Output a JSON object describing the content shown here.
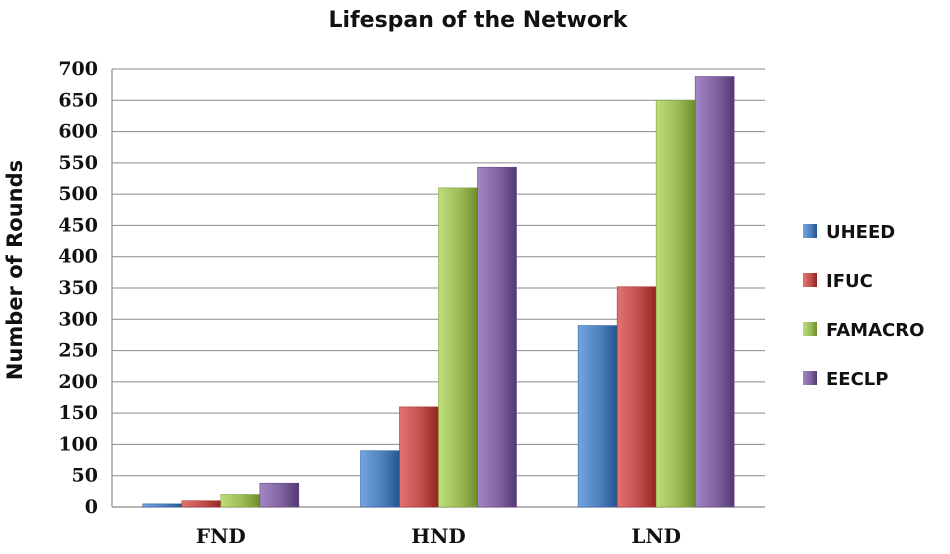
{
  "chart_data": {
    "type": "bar",
    "title": "Lifespan of the Network",
    "xlabel": "",
    "ylabel": "Number of Rounds",
    "categories": [
      "FND",
      "HND",
      "LND"
    ],
    "ylim": [
      0,
      700
    ],
    "yticks": [
      0,
      50,
      100,
      150,
      200,
      250,
      300,
      350,
      400,
      450,
      500,
      550,
      600,
      650,
      700
    ],
    "grid": true,
    "legend_position": "right",
    "series": [
      {
        "name": "UHEED",
        "values": [
          5,
          90,
          290
        ],
        "color": "#4f81bd"
      },
      {
        "name": "IFUC",
        "values": [
          10,
          160,
          352
        ],
        "color": "#c0504d"
      },
      {
        "name": "FAMACRO",
        "values": [
          20,
          510,
          650
        ],
        "color": "#9bbb59"
      },
      {
        "name": "EECLP",
        "values": [
          38,
          543,
          688
        ],
        "color": "#8064a2"
      }
    ]
  }
}
